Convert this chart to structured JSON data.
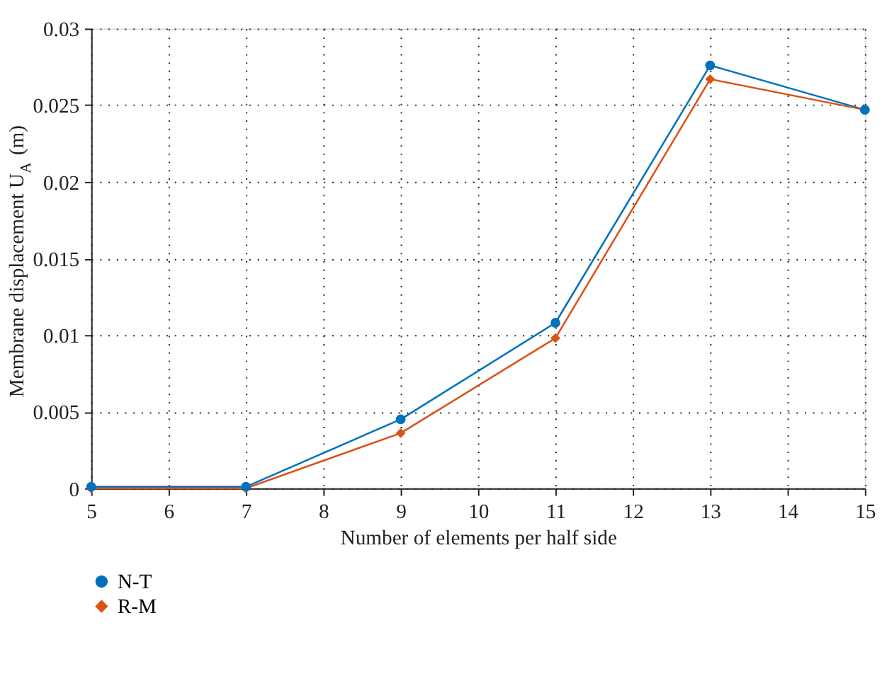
{
  "chart_data": {
    "type": "line",
    "xlabel": "Number of elements per half side",
    "ylabel": "Membrane displacement U$_{A}$ (m)",
    "x": [
      5,
      7,
      9,
      11,
      13,
      15
    ],
    "series": [
      {
        "name": "N-T",
        "color": "#0072bd",
        "marker": "circle",
        "values": [
          0.0001,
          0.0001,
          0.0045,
          0.0108,
          0.0276,
          0.0247
        ]
      },
      {
        "name": "R-M",
        "color": "#d95319",
        "marker": "diamond",
        "values": [
          0.0,
          0.0,
          0.0036,
          0.0098,
          0.0267,
          0.0247
        ]
      }
    ],
    "xlim": [
      5,
      15
    ],
    "xticks": [
      5,
      6,
      7,
      8,
      9,
      10,
      11,
      12,
      13,
      14,
      15
    ],
    "ylim": [
      0,
      0.03
    ],
    "yticks": [
      0,
      0.005,
      0.01,
      0.015,
      0.02,
      0.025,
      0.03
    ],
    "grid": true,
    "legend": "bottom left",
    "line_style": "solid"
  }
}
